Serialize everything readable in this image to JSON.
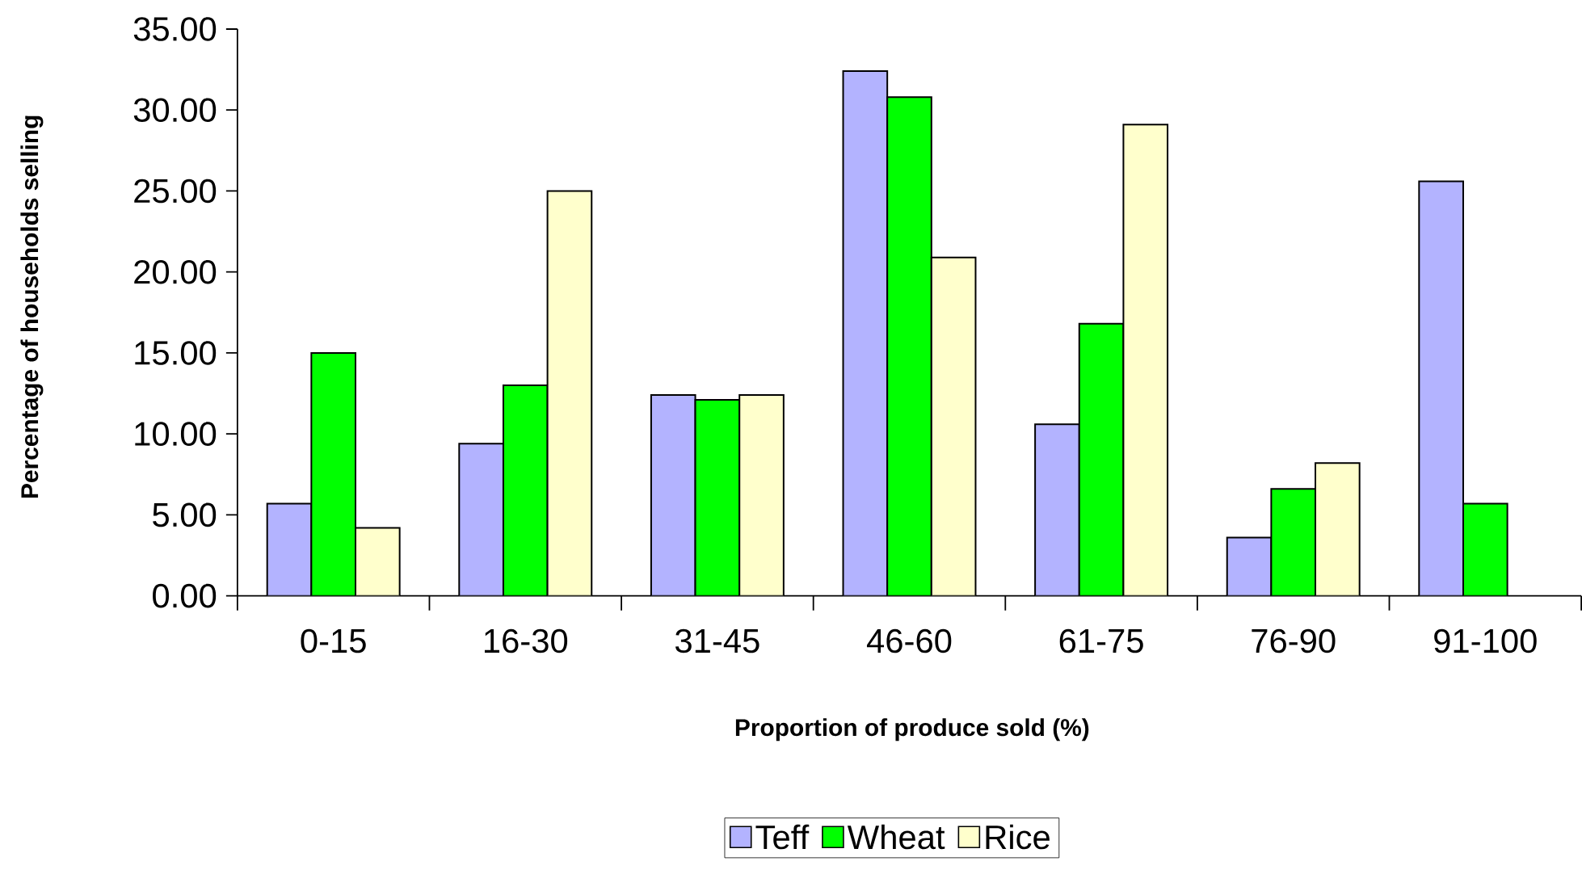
{
  "chart_data": {
    "type": "bar",
    "xlabel": "Proportion of produce sold  (%)",
    "ylabel": "Percentage of households selling",
    "categories": [
      "0-15",
      "16-30",
      "31-45",
      "46-60",
      "61-75",
      "76-90",
      "91-100"
    ],
    "series": [
      {
        "name": "Teff",
        "color": "#b3b3ff",
        "values": [
          5.7,
          9.4,
          12.4,
          32.4,
          10.6,
          3.6,
          25.6
        ]
      },
      {
        "name": "Wheat",
        "color": "#00ff00",
        "values": [
          15.0,
          13.0,
          12.1,
          30.8,
          16.8,
          6.6,
          5.7
        ]
      },
      {
        "name": "Rice",
        "color": "#ffffcc",
        "values": [
          4.2,
          25.0,
          12.4,
          20.9,
          29.1,
          8.2,
          null
        ]
      }
    ],
    "ylim": [
      0,
      35
    ],
    "yticks": [
      {
        "value": 0,
        "label": "0.00"
      },
      {
        "value": 5,
        "label": "5.00"
      },
      {
        "value": 10,
        "label": "10.00"
      },
      {
        "value": 15,
        "label": "15.00"
      },
      {
        "value": 20,
        "label": "20.00"
      },
      {
        "value": 25,
        "label": "25.00"
      },
      {
        "value": 30,
        "label": "30.00"
      },
      {
        "value": 35,
        "label": "35.00"
      }
    ],
    "grid": false,
    "legend": "bottom"
  }
}
